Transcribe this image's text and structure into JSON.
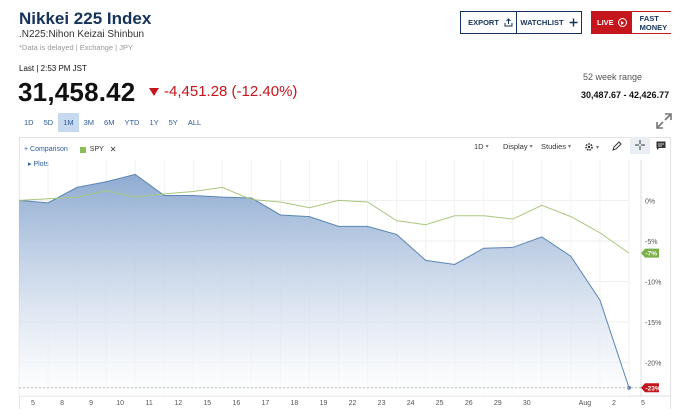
{
  "header": {
    "title": "Nikkei 225 Index",
    "subtitle": ".N225:Nihon Keizai Shinbun",
    "note": "*Data is delayed | Exchange | JPY"
  },
  "buttons": {
    "export": "EXPORT",
    "watchlist": "WATCHLIST",
    "live": "LIVE",
    "fast_money": "FAST MONEY"
  },
  "quote": {
    "last_label": "Last | 2:53 PM JST",
    "price": "31,458.42",
    "change": "-4,451.28 (-12.40%)",
    "range_label": "52 week range",
    "range_value": "30,487.67 - 42,426.77"
  },
  "tabs": [
    "1D",
    "5D",
    "1M",
    "3M",
    "6M",
    "YTD",
    "1Y",
    "5Y",
    "ALL"
  ],
  "active_tab": "1M",
  "toolbar": {
    "comparison": "+ Comparison",
    "spy": "SPY",
    "remove": "✕",
    "plots": "▸ Plots",
    "interval": "1D",
    "display": "Display",
    "studies": "Studies"
  },
  "icons": {
    "export": "share-icon",
    "watchlist": "plus-icon",
    "live": "play-icon",
    "expand": "expand-icon",
    "settings": "gear-icon",
    "draw": "pencil-icon",
    "crosshair": "crosshair-icon",
    "comment": "comment-icon"
  },
  "colors": {
    "navy": "#15335a",
    "red": "#c4161c",
    "nikkei_line": "#5b85b5",
    "nikkei_fill": "#8eabd1",
    "spy_line": "#a9c77f",
    "spy_badge": "#7ab04a",
    "tab_active": "#c6d9ee"
  },
  "chart_data": {
    "type": "area",
    "x": [
      "5",
      "8",
      "9",
      "10",
      "11",
      "12",
      "15",
      "16",
      "17",
      "18",
      "19",
      "22",
      "23",
      "24",
      "25",
      "26",
      "29",
      "30",
      "31",
      "Aug",
      "2",
      "5"
    ],
    "x_tick_labels": [
      "5",
      "8",
      "9",
      "10",
      "11",
      "12",
      "15",
      "16",
      "17",
      "18",
      "19",
      "22",
      "23",
      "24",
      "25",
      "26",
      "29",
      "30",
      "Aug",
      "2",
      "5"
    ],
    "y_ticks": [
      0,
      -5,
      -10,
      -15,
      -20
    ],
    "y_tick_labels": [
      "0%",
      "-5%",
      "-10%",
      "-15%",
      "-20%"
    ],
    "ylim": [
      -23.5,
      3.5
    ],
    "grid": true,
    "series": [
      {
        "name": "",
        "type": "area",
        "values": [
          0,
          -0.3,
          1.6,
          2.3,
          3.2,
          0.6,
          0.6,
          0.4,
          0.3,
          -1.8,
          -2.0,
          -3.2,
          -3.2,
          -4.2,
          -7.4,
          -7.9,
          -5.9,
          -5.8,
          -4.5,
          -6.9,
          -12.3,
          -23.1
        ],
        "end_label": "-23%"
      },
      {
        "name": "SPY",
        "type": "line",
        "values": [
          0,
          0.2,
          0.4,
          1.2,
          0.4,
          0.8,
          1.1,
          1.6,
          0.1,
          -0.2,
          -0.9,
          0.0,
          -0.2,
          -2.5,
          -3.0,
          -1.9,
          -1.9,
          -2.3,
          -0.6,
          -2.0,
          -4.0,
          -6.5
        ],
        "end_label": "-7%"
      }
    ]
  }
}
